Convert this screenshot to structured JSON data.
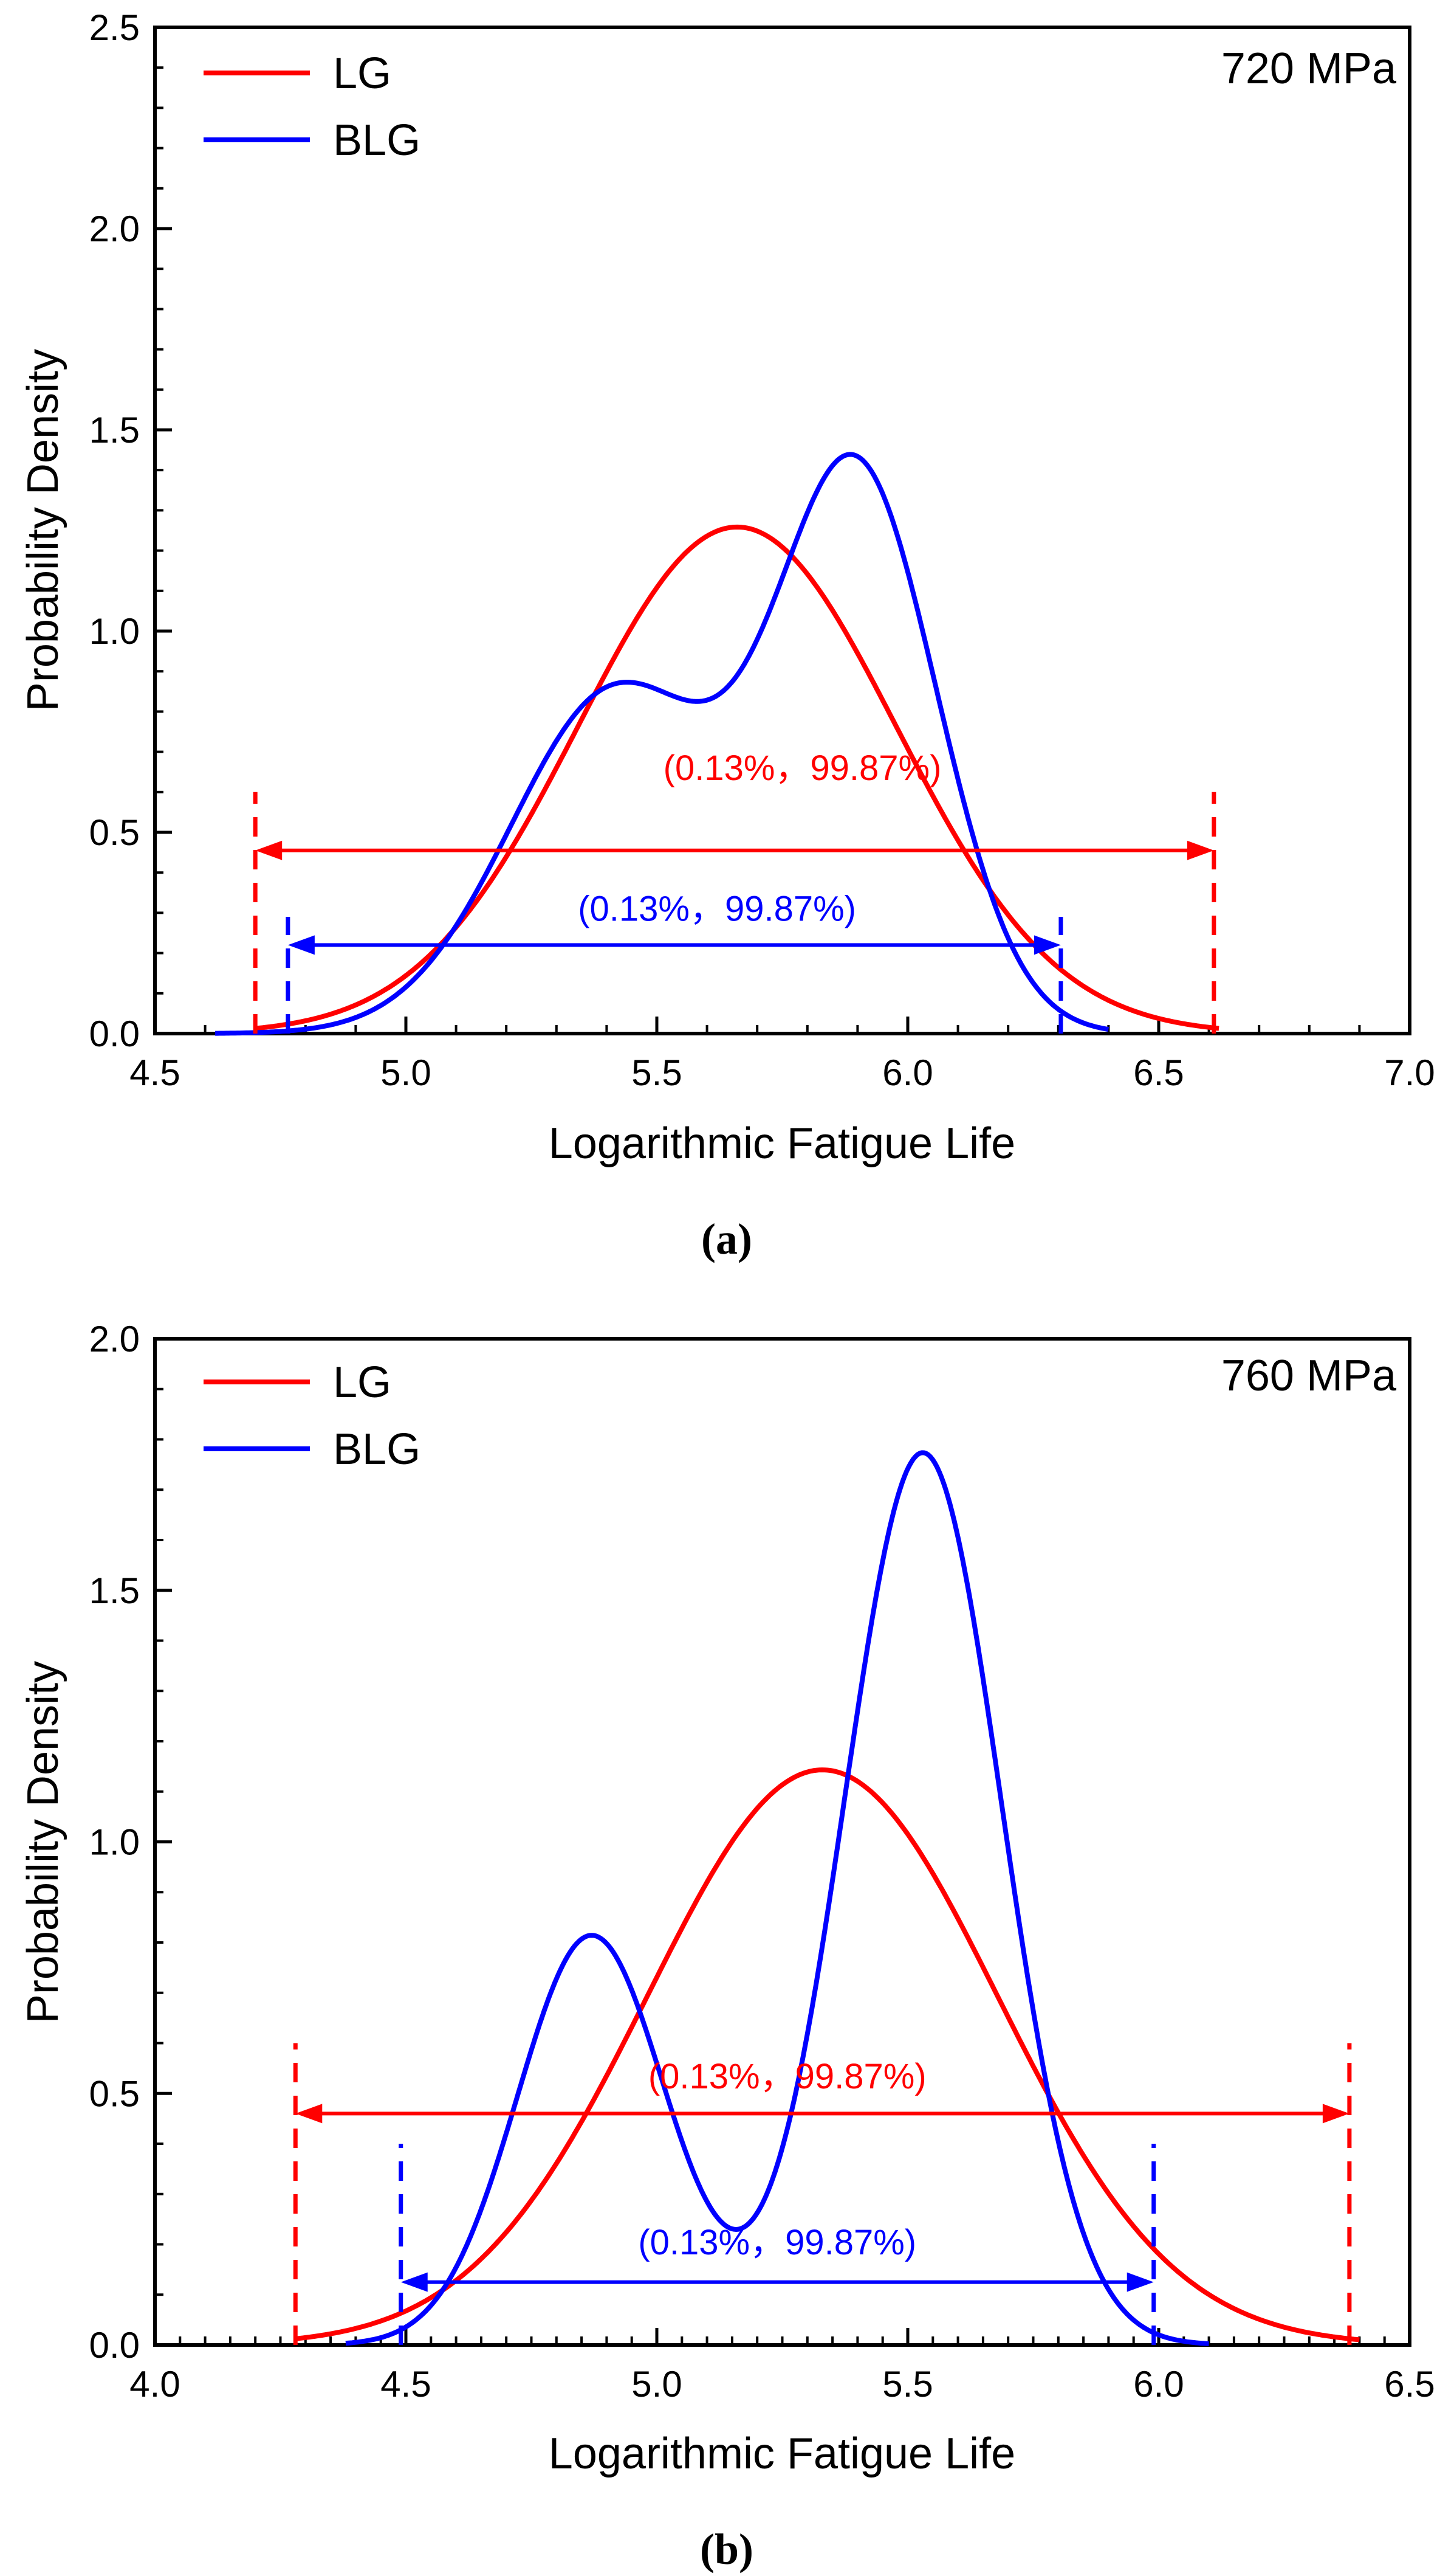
{
  "colors": {
    "lg": "#ff0000",
    "blg": "#0000ff",
    "axis": "#000000"
  },
  "chart_data": [
    {
      "type": "line",
      "panel_label": "(a)",
      "stress_label": "720 MPa",
      "xlabel": "Logarithmic Fatigue Life",
      "ylabel": "Probability Density",
      "xlim": [
        4.5,
        7.0
      ],
      "ylim": [
        0,
        2.5
      ],
      "x_ticks": [
        "4.5",
        "5.0",
        "5.5",
        "6.0",
        "6.5",
        "7.0"
      ],
      "y_ticks": [
        "0.0",
        "0.5",
        "1.0",
        "1.5",
        "2.0",
        "2.5"
      ],
      "x_tick_values": [
        4.5,
        5.0,
        5.5,
        6.0,
        6.5,
        7.0
      ],
      "y_tick_values": [
        0,
        0.5,
        1.0,
        1.5,
        2.0,
        2.5
      ],
      "x_minor_step": 0.1,
      "y_minor_step": 0.1,
      "legend": [
        "LG",
        "BLG"
      ],
      "series": [
        {
          "name": "LG",
          "color": "#ff0000",
          "kind": "normal",
          "mean": 5.66,
          "sd": 0.317,
          "range": [
            4.7,
            6.62
          ]
        },
        {
          "name": "BLG",
          "color": "#0000ff",
          "kind": "mixture",
          "components": [
            {
              "w": 0.45,
              "mu": 5.42,
              "sd": 0.21
            },
            {
              "w": 0.55,
              "mu": 5.9,
              "sd": 0.16
            }
          ],
          "range": [
            4.62,
            6.4
          ]
        }
      ],
      "intervals": [
        {
          "series": "LG",
          "color": "#ff0000",
          "label": "(0.13%，99.87%)",
          "x_low": 4.7,
          "x_high": 6.61,
          "y": 0.455,
          "marker_top": 0.6,
          "label_y": 0.63,
          "label_x": 5.79
        },
        {
          "series": "BLG",
          "color": "#0000ff",
          "label": "(0.13%，99.87%)",
          "x_low": 4.765,
          "x_high": 6.305,
          "y": 0.22,
          "marker_top": 0.29,
          "label_y": 0.28,
          "label_x": 5.62
        }
      ]
    },
    {
      "type": "line",
      "panel_label": "(b)",
      "stress_label": "760 MPa",
      "xlabel": "Logarithmic Fatigue Life",
      "ylabel": "Probability Density",
      "xlim": [
        4.0,
        6.5
      ],
      "ylim": [
        0,
        2.0
      ],
      "x_ticks": [
        "4.0",
        "4.5",
        "5.0",
        "5.5",
        "6.0",
        "6.5"
      ],
      "y_ticks": [
        "0.0",
        "0.5",
        "1.0",
        "1.5",
        "2.0"
      ],
      "x_tick_values": [
        4.0,
        4.5,
        5.0,
        5.5,
        6.0,
        6.5
      ],
      "y_tick_values": [
        0,
        0.5,
        1.0,
        1.5,
        2.0
      ],
      "x_minor_step": 0.05,
      "y_minor_step": 0.1,
      "legend": [
        "LG",
        "BLG"
      ],
      "series": [
        {
          "name": "LG",
          "color": "#ff0000",
          "kind": "normal",
          "mean": 5.33,
          "sd": 0.349,
          "range": [
            4.28,
            6.4
          ]
        },
        {
          "name": "BLG",
          "color": "#0000ff",
          "kind": "mixture",
          "components": [
            {
              "w": 0.302,
              "mu": 4.87,
              "sd": 0.148
            },
            {
              "w": 0.698,
              "mu": 5.53,
              "sd": 0.157
            }
          ],
          "range": [
            4.38,
            6.1
          ]
        }
      ],
      "intervals": [
        {
          "series": "LG",
          "color": "#ff0000",
          "label": "(0.13%，99.87%)",
          "x_low": 4.28,
          "x_high": 6.38,
          "y": 0.46,
          "marker_top": 0.6,
          "label_y": 0.51,
          "label_x": 5.26
        },
        {
          "series": "BLG",
          "color": "#0000ff",
          "label": "(0.13%，99.87%)",
          "x_low": 4.49,
          "x_high": 5.99,
          "y": 0.125,
          "marker_top": 0.4,
          "label_y": 0.18,
          "label_x": 5.24
        }
      ]
    }
  ]
}
